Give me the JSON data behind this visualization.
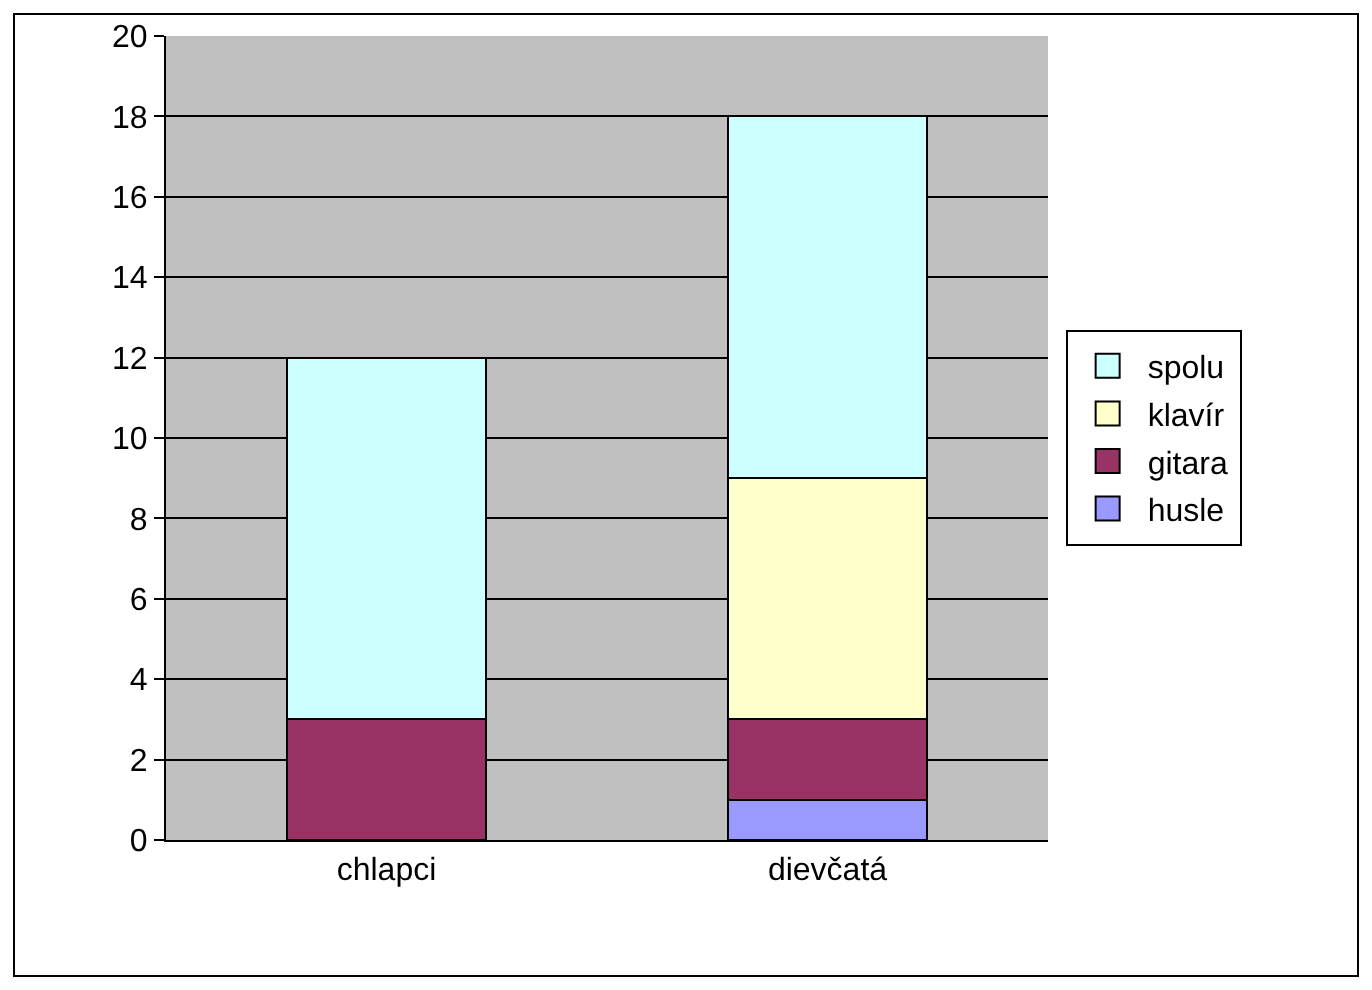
{
  "chart_data": {
    "type": "bar",
    "stacked": true,
    "categories": [
      "chlapci",
      "dievčatá"
    ],
    "series": [
      {
        "name": "husle",
        "color": "#9999ff",
        "values": [
          0,
          1
        ]
      },
      {
        "name": "gitara",
        "color": "#993366",
        "values": [
          3,
          2
        ]
      },
      {
        "name": "klavír",
        "color": "#ffffcc",
        "values": [
          0,
          6
        ]
      },
      {
        "name": "spolu",
        "color": "#ccffff",
        "values": [
          9,
          9
        ]
      }
    ],
    "ylim": [
      0,
      20
    ],
    "yticks": [
      0,
      2,
      4,
      6,
      8,
      10,
      12,
      14,
      16,
      18,
      20
    ],
    "grid": "y",
    "legend": "right"
  }
}
